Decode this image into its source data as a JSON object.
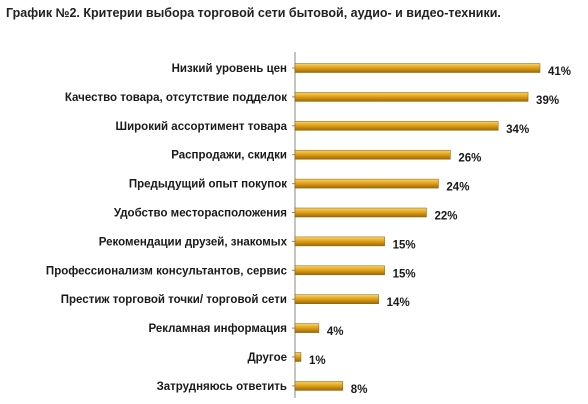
{
  "chart_data": {
    "type": "bar",
    "orientation": "horizontal",
    "title": "График №2. Критерии выбора торговой сети бытовой, аудио- и видео-техники.",
    "categories": [
      "Низкий уровень цен",
      "Качество товара, отсутствие подделок",
      "Широкий ассортимент товара",
      "Распродажи, скидки",
      "Предыдущий опыт покупок",
      "Удобство месторасположения",
      "Рекомендации друзей, знакомых",
      "Профессионализм консультантов, сервис",
      "Престиж торговой точки/ торговой сети",
      "Рекламная информация",
      "Другое",
      "Затрудняюсь ответить"
    ],
    "values": [
      41,
      39,
      34,
      26,
      24,
      22,
      15,
      15,
      14,
      4,
      1,
      8
    ],
    "value_labels": [
      "41%",
      "39%",
      "34%",
      "26%",
      "24%",
      "22%",
      "15%",
      "15%",
      "14%",
      "4%",
      "1%",
      "8%"
    ],
    "xlim": [
      0,
      45
    ],
    "grid": false,
    "legend": "none",
    "bar_color": "#E3A21A"
  }
}
